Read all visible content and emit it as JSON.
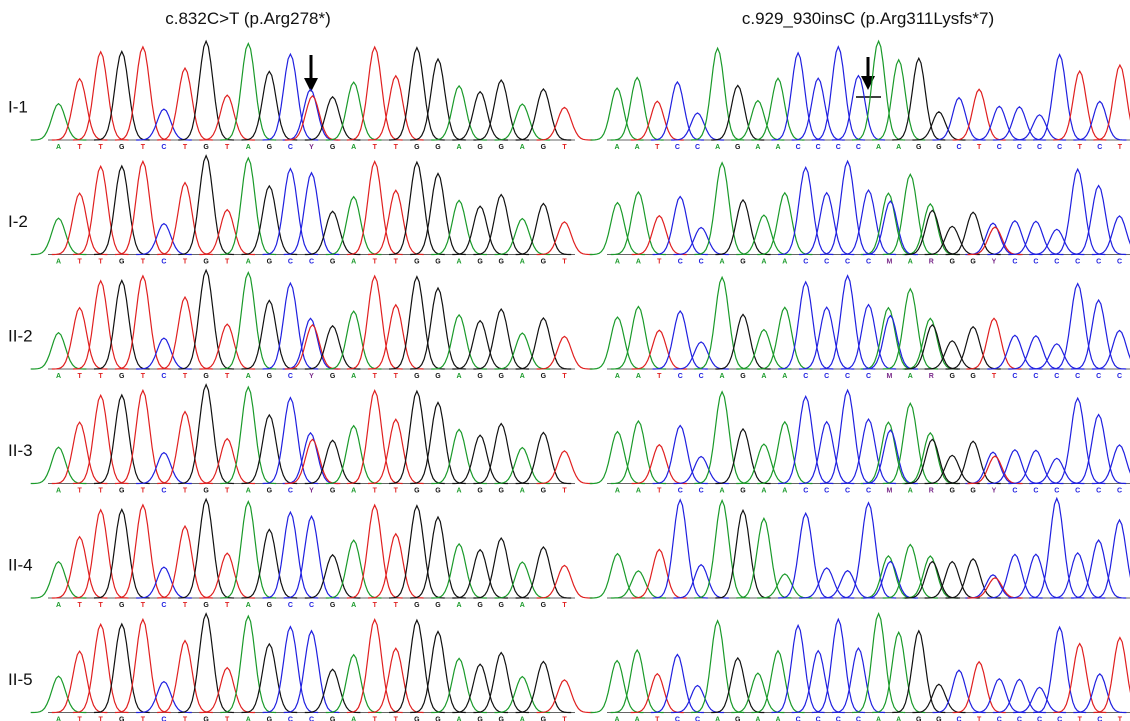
{
  "row_labels": [
    "I-1",
    "I-2",
    "II-2",
    "II-3",
    "II-4",
    "II-5"
  ],
  "panels": [
    {
      "title": "c.832C>T (p.Arg278*)",
      "sequences": [
        "ATTGTCTGTAGCYGATTGGAGGAGT",
        "ATTGTCTGTAGCCGATTGGAGGAGT",
        "ATTGTCTGTAGCYGATTGGAGGAGT",
        "ATTGTCTGTAGCYGATTGGAGGAGT",
        "ATTGTCTGTAGCCGATTGGAGGAGT",
        "ATTGTCTGTAGCCGATTGGAGGAGT"
      ]
    },
    {
      "title": "c.929_930insC (p.Arg311Lysfs*7)",
      "sequences": [
        "AATCCAGAACCCCAAGGCTCCCCTCT",
        "AATCCAGAACCCCMARGGYCCCCCC",
        "AATCCAGAACCCCMARGGTCCCCCC",
        "AATCCAGAACCCCMARGGYCCCCCC",
        null,
        "AATCCAGAACCCCAAGGCTCCCCTCT"
      ]
    }
  ]
}
